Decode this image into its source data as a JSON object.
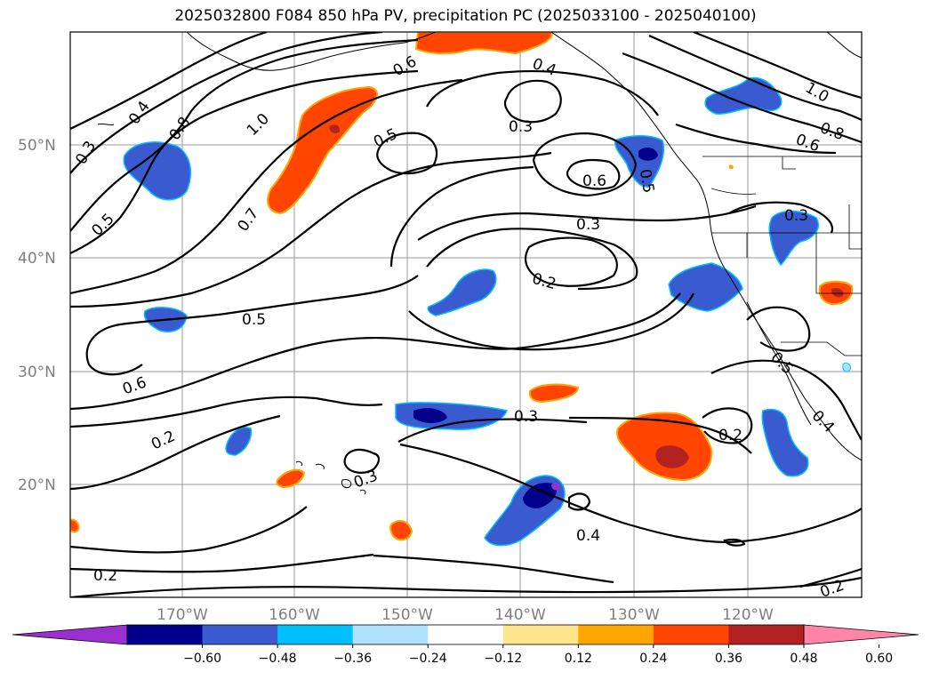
{
  "title": "2025032800 F084 850 hPa PV, precipitation PC (2025033100 - 2025040100)",
  "lat_labels": [
    "50°N",
    "40°N",
    "30°N",
    "20°N"
  ],
  "lon_labels": [
    "170°W",
    "160°W",
    "150°W",
    "140°W",
    "130°W",
    "120°W"
  ],
  "contour_labels": [
    "0.3",
    "0.4",
    "0.8",
    "1.0",
    "0.5",
    "0.7",
    "0.6",
    "0.5",
    "0.4",
    "0.3",
    "0.6",
    "0.5",
    "0.3",
    "0.2",
    "0.5",
    "0.6",
    "0.2",
    "0.3",
    "0.3",
    "0.4",
    "0.2",
    "0.2",
    "1.0",
    "0.8",
    "0.6",
    "0.3",
    "0.5",
    "0.4",
    "0.2"
  ],
  "colorbar": {
    "ticks": [
      "−0.60",
      "−0.48",
      "−0.36",
      "−0.24",
      "−0.12",
      "0.12",
      "0.24",
      "0.36",
      "0.48",
      "0.60"
    ],
    "colors": [
      "#9b30d0",
      "#00008b",
      "#3a5bd0",
      "#00bfff",
      "#b0e2ff",
      "#ffffff",
      "#fce58a",
      "#ffa500",
      "#ff4500",
      "#b22222",
      "#ff85a8"
    ]
  },
  "colors": {
    "neg_strong": "#00008b",
    "neg_mid": "#3a5bd0",
    "neg_light": "#00bfff",
    "pos_mid": "#ff4500",
    "pos_dark": "#b22222",
    "pos_light": "#ffa500",
    "pos_faint": "#fce58a",
    "purple": "#9b30d0"
  }
}
